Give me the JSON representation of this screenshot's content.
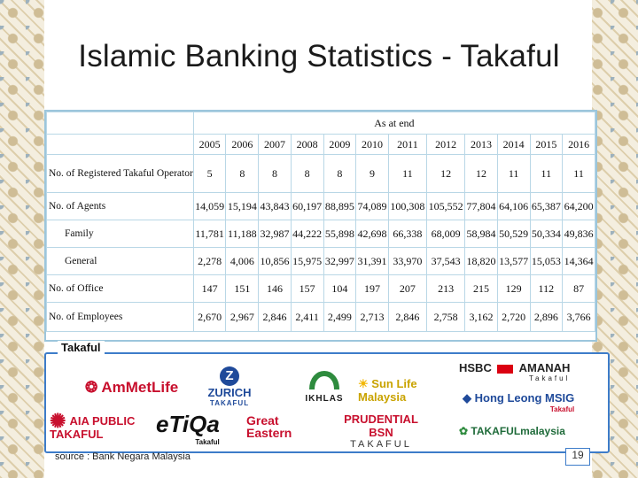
{
  "title": "Islamic Banking Statistics - Takaful",
  "table": {
    "as_at": "As at end",
    "years": [
      "2005",
      "2006",
      "2007",
      "2008",
      "2009",
      "2010",
      "2011",
      "2012",
      "2013",
      "2014",
      "2015",
      "2016"
    ],
    "rows": [
      {
        "label": "No. of Registered Takaful Operator",
        "values": [
          "5",
          "8",
          "8",
          "8",
          "8",
          "9",
          "11",
          "12",
          "12",
          "11",
          "11",
          "11"
        ]
      },
      {
        "label": "No. of Agents",
        "values": [
          "14,059",
          "15,194",
          "43,843",
          "60,197",
          "88,895",
          "74,089",
          "100,308",
          "105,552",
          "77,804",
          "64,106",
          "65,387",
          "64,200"
        ]
      },
      {
        "label": "Family",
        "values": [
          "11,781",
          "11,188",
          "32,987",
          "44,222",
          "55,898",
          "42,698",
          "66,338",
          "68,009",
          "58,984",
          "50,529",
          "50,334",
          "49,836"
        ]
      },
      {
        "label": "General",
        "values": [
          "2,278",
          "4,006",
          "10,856",
          "15,975",
          "32,997",
          "31,391",
          "33,970",
          "37,543",
          "18,820",
          "13,577",
          "15,053",
          "14,364"
        ]
      },
      {
        "label": "No. of Office",
        "values": [
          "147",
          "151",
          "146",
          "157",
          "104",
          "197",
          "207",
          "213",
          "215",
          "129",
          "112",
          "87"
        ]
      },
      {
        "label": "No. of Employees",
        "values": [
          "2,670",
          "2,967",
          "2,846",
          "2,411",
          "2,499",
          "2,713",
          "2,846",
          "2,758",
          "3,162",
          "2,720",
          "2,896",
          "3,766"
        ]
      }
    ]
  },
  "logos_panel": {
    "heading": "Takaful",
    "logos": {
      "ammetlife": "AmMetLife",
      "zurich": "ZURICH",
      "zurich_sub": "TAKAFUL",
      "ikhlas": "IKHLAS",
      "sunlife": "Sun Life Malaysia",
      "hsbc": "HSBC",
      "amanah": "AMANAH",
      "amanah_sub": "Takaful",
      "hongleong": "Hong Leong MSIG",
      "hongleong_sub": "Takaful",
      "aia": "AIA PUBLIC TAKAFUL",
      "etiqa": "eTiQa",
      "etiqa_sub": "Takaful",
      "greateastern": "Great Eastern",
      "prudential": "PRUDENTIAL BSN",
      "prudential_sub": "TAKAFUL",
      "takafulmalaysia": "TAKAFULmalaysia"
    }
  },
  "source": "source : Bank Negara Malaysia",
  "page_number": "19",
  "colors": {
    "table_border": "#9cc6dc",
    "panel_border": "#3d7cc9",
    "hsbc_red": "#db0011"
  }
}
